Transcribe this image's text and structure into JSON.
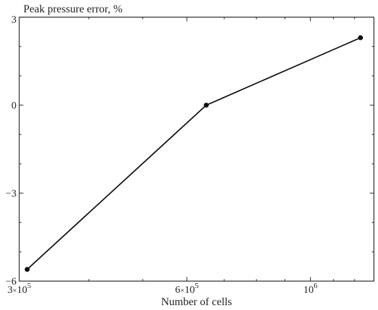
{
  "chart_data": {
    "type": "line",
    "title": "Peak pressure error, %",
    "xlabel": "Number of cells",
    "ylabel": "",
    "x_scale": "log",
    "xlim": [
      300000,
      1300000
    ],
    "ylim": [
      -6,
      3
    ],
    "x_ticks": [
      {
        "value": 300000,
        "mantissa": "3",
        "exp": "5"
      },
      {
        "value": 600000,
        "mantissa": "6",
        "exp": "5"
      },
      {
        "value": 1000000,
        "mantissa": "",
        "exp": "6"
      }
    ],
    "y_ticks": [
      {
        "value": 3,
        "label": "3"
      },
      {
        "value": 0,
        "label": "0"
      },
      {
        "value": -3,
        "label": "−3"
      },
      {
        "value": -6,
        "label": "−6"
      }
    ],
    "grid": false,
    "legend": "none",
    "colors": {
      "line": "#111111",
      "axis": "#222222"
    },
    "series": [
      {
        "x": [
          310000,
          650000,
          1230000
        ],
        "y": [
          -5.6,
          0.0,
          2.3
        ]
      }
    ]
  }
}
